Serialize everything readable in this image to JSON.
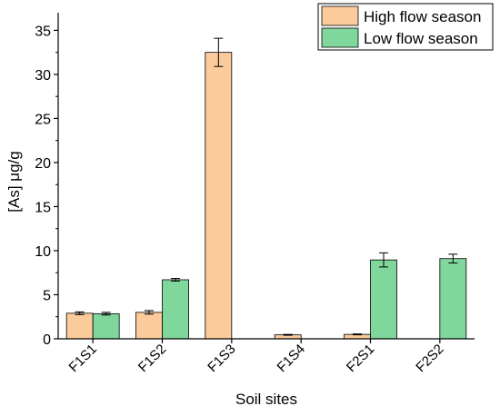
{
  "chart_data": {
    "type": "bar",
    "title": "",
    "xlabel": "Soil sites",
    "ylabel": "[As] μg/g",
    "ylim": [
      0,
      37
    ],
    "yticks": [
      "0",
      "5",
      "10",
      "15",
      "20",
      "25",
      "30",
      "35"
    ],
    "grid": false,
    "legend_position": "top-right",
    "categories": [
      "F1S1",
      "F1S2",
      "F1S3",
      "F1S4",
      "F2S1",
      "F2S2"
    ],
    "series": [
      {
        "name": "High flow season",
        "color": "#FBCB9B",
        "values": [
          2.9,
          3.0,
          32.5,
          0.45,
          0.5,
          null
        ],
        "errors": [
          0.15,
          0.2,
          1.6,
          0.05,
          0.05,
          null
        ]
      },
      {
        "name": "Low flow season",
        "color": "#7FD79B",
        "values": [
          2.85,
          6.7,
          null,
          null,
          8.95,
          9.1
        ],
        "errors": [
          0.15,
          0.15,
          null,
          null,
          0.8,
          0.5
        ]
      }
    ]
  }
}
